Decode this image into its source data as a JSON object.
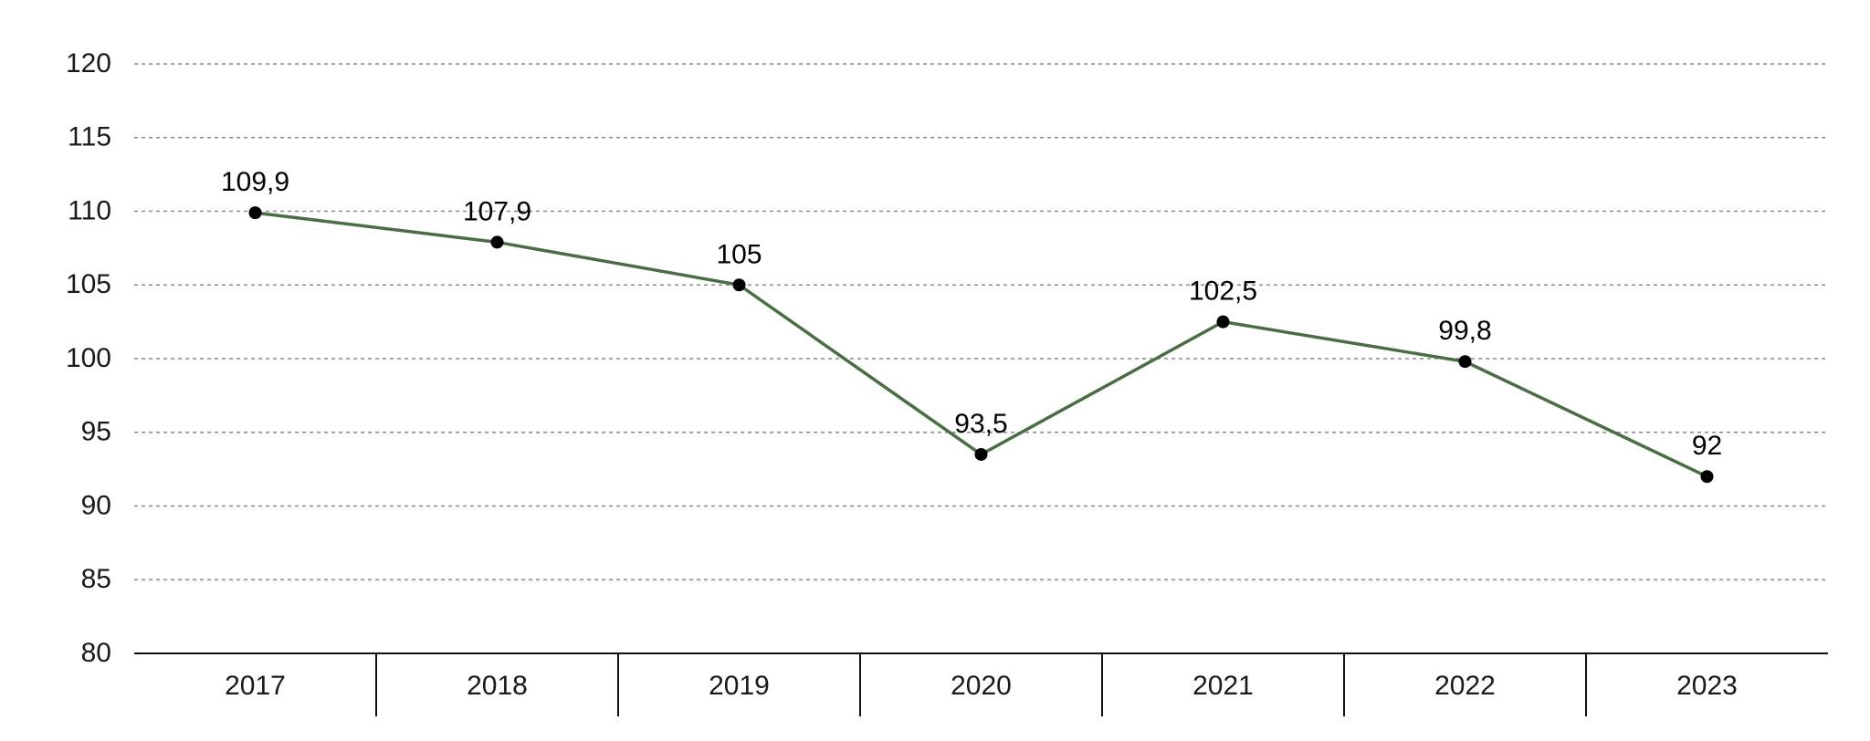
{
  "chart_data": {
    "type": "line",
    "categories": [
      "2017",
      "2018",
      "2019",
      "2020",
      "2021",
      "2022",
      "2023"
    ],
    "series": [
      {
        "values": [
          109.9,
          107.9,
          105,
          93.5,
          102.5,
          99.8,
          92
        ],
        "labels": [
          "109,9",
          "107,9",
          "105",
          "93,5",
          "102,5",
          "99,8",
          "92"
        ]
      }
    ],
    "ylim": [
      80,
      120
    ],
    "yticks": [
      "80",
      "85",
      "90",
      "95",
      "100",
      "105",
      "110",
      "115",
      "120"
    ],
    "grid": true,
    "title": "",
    "xlabel": "",
    "ylabel": "",
    "colors": {
      "line": "#4a6e43",
      "marker": "#000000",
      "grid": "#8a8a8a",
      "axis": "#111111"
    }
  }
}
